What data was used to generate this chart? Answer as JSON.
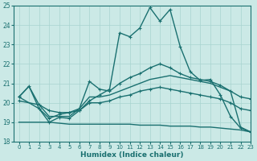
{
  "xlabel": "Humidex (Indice chaleur)",
  "xlim": [
    -0.5,
    23
  ],
  "ylim": [
    18,
    25
  ],
  "xticks": [
    0,
    1,
    2,
    3,
    4,
    5,
    6,
    7,
    8,
    9,
    10,
    11,
    12,
    13,
    14,
    15,
    16,
    17,
    18,
    19,
    20,
    21,
    22,
    23
  ],
  "yticks": [
    18,
    19,
    20,
    21,
    22,
    23,
    24,
    25
  ],
  "bg_color": "#cbe9e6",
  "grid_color": "#a8d4d0",
  "line_color": "#1a7070",
  "series": [
    {
      "x": [
        0,
        1,
        2,
        3,
        4,
        5,
        6,
        7,
        8,
        9,
        10,
        11,
        12,
        13,
        14,
        15,
        16,
        17,
        18,
        19,
        20,
        21,
        22,
        23
      ],
      "y": [
        20.3,
        20.85,
        19.7,
        19.0,
        19.25,
        19.2,
        19.6,
        20.1,
        20.4,
        20.7,
        23.6,
        23.4,
        23.85,
        24.9,
        24.2,
        24.8,
        22.9,
        21.6,
        21.15,
        21.2,
        20.4,
        19.3,
        18.7,
        18.5
      ],
      "marker": true,
      "lw": 1.0
    },
    {
      "x": [
        0,
        2,
        3,
        4,
        5,
        6,
        7,
        8,
        9,
        10,
        11,
        12,
        13,
        14,
        15,
        16,
        17,
        18,
        19,
        20,
        21,
        22,
        23
      ],
      "y": [
        20.3,
        19.7,
        19.2,
        19.4,
        19.5,
        19.7,
        21.1,
        20.7,
        20.6,
        21.0,
        21.3,
        21.5,
        21.8,
        22.0,
        21.8,
        21.5,
        21.3,
        21.2,
        21.1,
        20.9,
        20.6,
        20.3,
        20.2
      ],
      "marker": true,
      "lw": 1.0
    },
    {
      "x": [
        0,
        2,
        3,
        4,
        5,
        6,
        7,
        8,
        9,
        10,
        11,
        12,
        13,
        14,
        15,
        16,
        17,
        18,
        19,
        20,
        21,
        22,
        23
      ],
      "y": [
        20.1,
        19.9,
        19.6,
        19.5,
        19.5,
        19.6,
        20.0,
        20.0,
        20.1,
        20.3,
        20.4,
        20.6,
        20.7,
        20.8,
        20.7,
        20.6,
        20.5,
        20.4,
        20.3,
        20.2,
        20.0,
        19.7,
        19.6
      ],
      "marker": true,
      "lw": 1.0
    },
    {
      "x": [
        0,
        1,
        2,
        3,
        4,
        5,
        6,
        7,
        8,
        9,
        10,
        11,
        12,
        13,
        14,
        15,
        16,
        17,
        18,
        19,
        20,
        21,
        22,
        23
      ],
      "y": [
        20.3,
        20.85,
        19.9,
        19.3,
        19.3,
        19.3,
        19.7,
        20.3,
        20.3,
        20.4,
        20.6,
        20.8,
        21.0,
        21.2,
        21.3,
        21.4,
        21.3,
        21.2,
        21.1,
        21.0,
        20.8,
        20.6,
        18.75,
        18.5
      ],
      "marker": false,
      "lw": 1.0
    },
    {
      "x": [
        0,
        1,
        2,
        3,
        4,
        5,
        6,
        7,
        8,
        9,
        10,
        11,
        12,
        13,
        14,
        15,
        16,
        17,
        18,
        19,
        20,
        21,
        22,
        23
      ],
      "y": [
        19.0,
        19.0,
        19.0,
        19.0,
        18.95,
        18.9,
        18.9,
        18.9,
        18.9,
        18.9,
        18.9,
        18.9,
        18.85,
        18.85,
        18.85,
        18.8,
        18.8,
        18.8,
        18.75,
        18.75,
        18.7,
        18.65,
        18.6,
        18.5
      ],
      "marker": false,
      "lw": 1.0
    }
  ]
}
